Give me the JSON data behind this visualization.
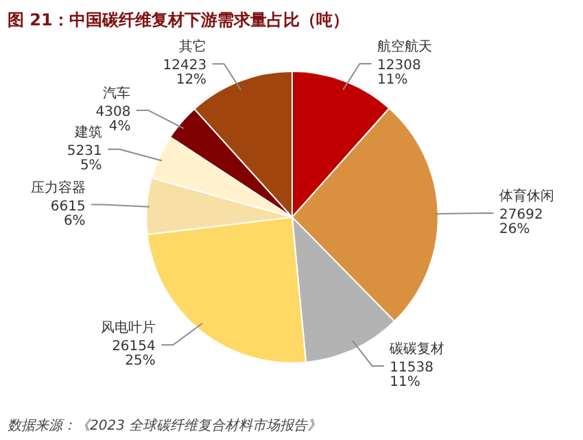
{
  "chart_data": {
    "type": "pie",
    "title": "图 21：中国碳纤维复材下游需求量占比（吨）",
    "categories": [
      "航空航天",
      "体育休闲",
      "碳碳复材",
      "风电叶片",
      "压力容器",
      "建筑",
      "汽车",
      "其它"
    ],
    "values": [
      12308,
      27692,
      11538,
      26154,
      6615,
      5231,
      4308,
      12423
    ],
    "colors": [
      "#c00000",
      "#d9913f",
      "#b3b3b3",
      "#ffd966",
      "#f8dfa5",
      "#fff2cc",
      "#7f0000",
      "#a0450e"
    ],
    "value_labels": [
      "12308\n11%",
      "27692\n26%",
      "11538\n11%",
      "26154\n25%",
      "6615\n6%",
      "5231\n5%",
      "4308\n4%",
      "12423\n12%"
    ],
    "annotations": [
      "数据来源：《2023 全球碳纤维复合材料市场报告》"
    ]
  }
}
